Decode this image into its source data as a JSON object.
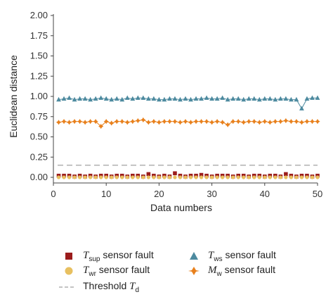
{
  "chart_data": {
    "type": "scatter",
    "xlabel": "Data numbers",
    "ylabel": "Euclidean distance",
    "xlim": [
      0,
      50
    ],
    "ylim": [
      0,
      2.0
    ],
    "xticks": [
      "0",
      "10",
      "20",
      "30",
      "40",
      "50"
    ],
    "yticks": [
      "0.00",
      "0.25",
      "0.50",
      "0.75",
      "1.00",
      "1.25",
      "1.50",
      "1.75",
      "2.00"
    ],
    "x": [
      1,
      2,
      3,
      4,
      5,
      6,
      7,
      8,
      9,
      10,
      11,
      12,
      13,
      14,
      15,
      16,
      17,
      18,
      19,
      20,
      21,
      22,
      23,
      24,
      25,
      26,
      27,
      28,
      29,
      30,
      31,
      32,
      33,
      34,
      35,
      36,
      37,
      38,
      39,
      40,
      41,
      42,
      43,
      44,
      45,
      46,
      47,
      48,
      49,
      50
    ],
    "series": [
      {
        "name": "T_sup sensor fault",
        "color": "#9b1c1c",
        "marker": "square",
        "line": false,
        "values": [
          0.02,
          0.02,
          0.02,
          0.01,
          0.02,
          0.01,
          0.02,
          0.01,
          0.02,
          0.02,
          0.01,
          0.02,
          0.02,
          0.01,
          0.02,
          0.02,
          0.01,
          0.04,
          0.02,
          0.01,
          0.02,
          0.01,
          0.05,
          0.02,
          0.01,
          0.02,
          0.02,
          0.03,
          0.02,
          0.01,
          0.02,
          0.02,
          0.02,
          0.01,
          0.02,
          0.02,
          0.01,
          0.02,
          0.02,
          0.01,
          0.02,
          0.02,
          0.01,
          0.04,
          0.02,
          0.01,
          0.02,
          0.02,
          0.01,
          0.02
        ]
      },
      {
        "name": "T_wr sensor fault",
        "color": "#e8c060",
        "marker": "circle",
        "line": false,
        "values": [
          0.0,
          0.0,
          0.0,
          0.0,
          0.0,
          0.0,
          0.0,
          0.0,
          0.0,
          0.0,
          0.0,
          0.0,
          0.0,
          0.0,
          0.0,
          0.0,
          0.0,
          0.0,
          0.0,
          0.0,
          0.0,
          0.0,
          0.0,
          0.0,
          0.0,
          0.0,
          0.0,
          0.0,
          0.0,
          0.0,
          0.0,
          0.0,
          0.0,
          0.0,
          0.0,
          0.0,
          0.0,
          0.0,
          0.0,
          0.0,
          0.0,
          0.0,
          0.0,
          0.0,
          0.0,
          0.0,
          0.0,
          0.0,
          0.0,
          0.0
        ]
      },
      {
        "name": "T_ws sensor fault",
        "color": "#4d8a9f",
        "marker": "triangle",
        "line": true,
        "values": [
          0.96,
          0.97,
          0.98,
          0.96,
          0.97,
          0.97,
          0.96,
          0.97,
          0.98,
          0.97,
          0.96,
          0.97,
          0.96,
          0.98,
          0.97,
          0.98,
          0.98,
          0.97,
          0.97,
          0.96,
          0.96,
          0.97,
          0.97,
          0.96,
          0.97,
          0.96,
          0.97,
          0.97,
          0.98,
          0.97,
          0.97,
          0.98,
          0.96,
          0.97,
          0.97,
          0.96,
          0.97,
          0.97,
          0.96,
          0.97,
          0.97,
          0.96,
          0.97,
          0.97,
          0.96,
          0.96,
          0.85,
          0.97,
          0.98,
          0.98
        ]
      },
      {
        "name": "M_w sensor fault",
        "color": "#e8801c",
        "marker": "plus",
        "line": true,
        "values": [
          0.68,
          0.69,
          0.68,
          0.69,
          0.69,
          0.68,
          0.69,
          0.69,
          0.63,
          0.69,
          0.67,
          0.69,
          0.69,
          0.68,
          0.69,
          0.7,
          0.71,
          0.68,
          0.69,
          0.68,
          0.69,
          0.69,
          0.69,
          0.68,
          0.69,
          0.68,
          0.69,
          0.69,
          0.69,
          0.68,
          0.69,
          0.68,
          0.65,
          0.69,
          0.69,
          0.68,
          0.69,
          0.69,
          0.68,
          0.69,
          0.68,
          0.69,
          0.69,
          0.7,
          0.69,
          0.69,
          0.68,
          0.69,
          0.69,
          0.69
        ]
      },
      {
        "name": "Threshold T_d",
        "color": "#b0b0b0",
        "marker": "none",
        "line": "dashed",
        "values": [
          0.15,
          0.15
        ]
      }
    ],
    "legend": {
      "position": "bottom",
      "items": [
        {
          "prefix": "T",
          "sub": "sup",
          "rest": " sensor fault",
          "marker": "square",
          "color": "#9b1c1c"
        },
        {
          "prefix": "T",
          "sub": "ws",
          "rest": " sensor fault",
          "marker": "triangle",
          "color": "#4d8a9f"
        },
        {
          "prefix": "T",
          "sub": "wr",
          "rest": " sensor fault",
          "marker": "circle",
          "color": "#e8c060"
        },
        {
          "prefix": "M",
          "sub": "w",
          "rest": " sensor fault",
          "marker": "plus",
          "color": "#e8801c"
        },
        {
          "prefix": "",
          "sub": "",
          "rest": "Threshold ",
          "italic_tail": "T",
          "tail_sub": "d",
          "marker": "dash",
          "color": "#b0b0b0"
        }
      ]
    }
  }
}
